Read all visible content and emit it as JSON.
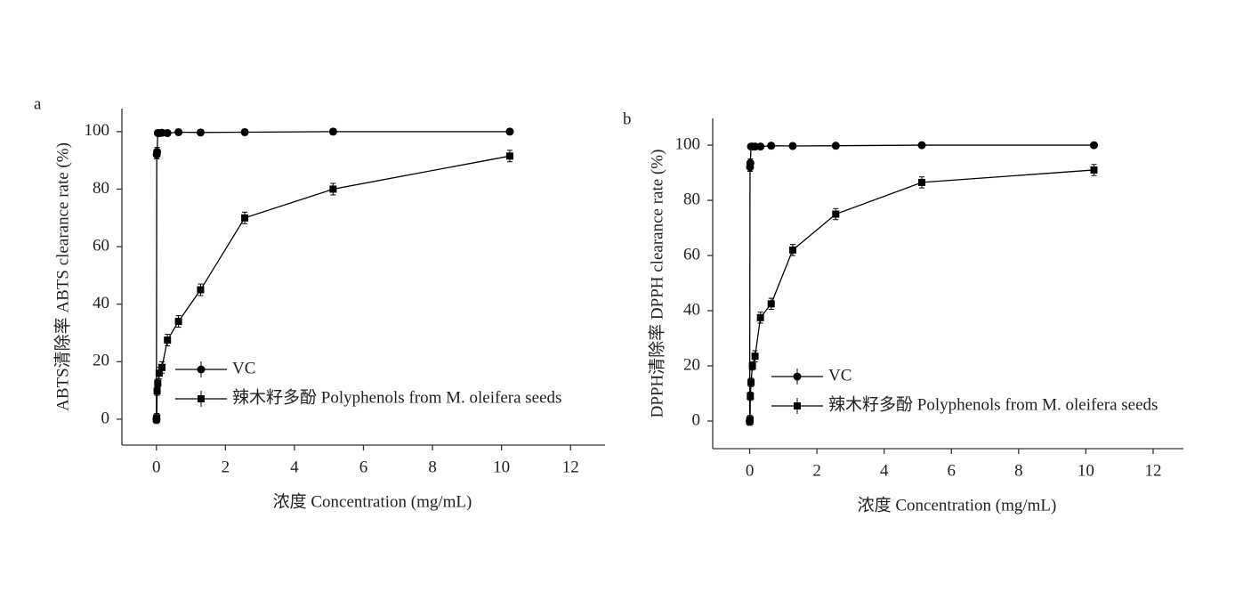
{
  "chart_data": [
    {
      "type": "line",
      "panel_label": "a",
      "x_label": "浓度 Concentration (mg/mL)",
      "y_label": "ABTS清除率  ABTS clearance rate (%)",
      "xlim": [
        -1,
        13
      ],
      "ylim": [
        -9,
        108
      ],
      "xticks": [
        0,
        2,
        4,
        6,
        8,
        10,
        12
      ],
      "yticks": [
        0,
        20,
        40,
        60,
        80,
        100
      ],
      "x": [
        0,
        0.01,
        0.02,
        0.04,
        0.08,
        0.16,
        0.32,
        0.64,
        1.28,
        2.56,
        5.12,
        10.24
      ],
      "legend": "lower right",
      "grid": false,
      "series": [
        {
          "name": "VC",
          "color": "#000000",
          "marker": "circle",
          "values": [
            0,
            92,
            93,
            99.5,
            99.5,
            99.6,
            99.5,
            99.8,
            99.7,
            99.8,
            100,
            100
          ],
          "errors": [
            1,
            1.5,
            1.5,
            1,
            1,
            1,
            1,
            1,
            1,
            1,
            1,
            1
          ]
        },
        {
          "name": "辣木籽多酚  Polyphenols from M. oleifera seeds",
          "color": "#000000",
          "marker": "square",
          "values": [
            0,
            0.5,
            9.8,
            12.5,
            16,
            18,
            27.5,
            34,
            45,
            70,
            80,
            91.5
          ],
          "errors": [
            1.5,
            1.5,
            1.5,
            1.5,
            2,
            2,
            2,
            2,
            2,
            2,
            2,
            2
          ]
        }
      ]
    },
    {
      "type": "line",
      "panel_label": "b",
      "x_label": "浓度  Concentration (mg/mL)",
      "y_label": "DPPH清除率  DPPH clearance rate (%)",
      "xlim": [
        -1.1,
        12.9
      ],
      "ylim": [
        -10,
        109.7
      ],
      "xticks": [
        0,
        2,
        4,
        6,
        8,
        10,
        12
      ],
      "yticks": [
        0,
        20,
        40,
        60,
        80,
        100
      ],
      "x": [
        0,
        0.01,
        0.02,
        0.04,
        0.08,
        0.16,
        0.32,
        0.64,
        1.28,
        2.56,
        5.12,
        10.24
      ],
      "legend": "lower right",
      "grid": false,
      "series": [
        {
          "name": "VC",
          "color": "#000000",
          "marker": "circle",
          "values": [
            0,
            92,
            93.5,
            99.5,
            99.5,
            99.5,
            99.5,
            99.8,
            99.7,
            99.8,
            100,
            100
          ],
          "errors": [
            1.5,
            1.5,
            1.5,
            1,
            1,
            1,
            1,
            1,
            1,
            1,
            1,
            1
          ]
        },
        {
          "name": "辣木籽多酚  Polyphenols from M. oleifera seeds",
          "color": "#000000",
          "marker": "square",
          "values": [
            0,
            0.5,
            9,
            14,
            20,
            23.5,
            37.5,
            42.5,
            62,
            75,
            86.5,
            91
          ],
          "errors": [
            1.5,
            1.5,
            1.5,
            1.5,
            1.5,
            2,
            2,
            2,
            2,
            2,
            2,
            2
          ]
        }
      ]
    }
  ]
}
